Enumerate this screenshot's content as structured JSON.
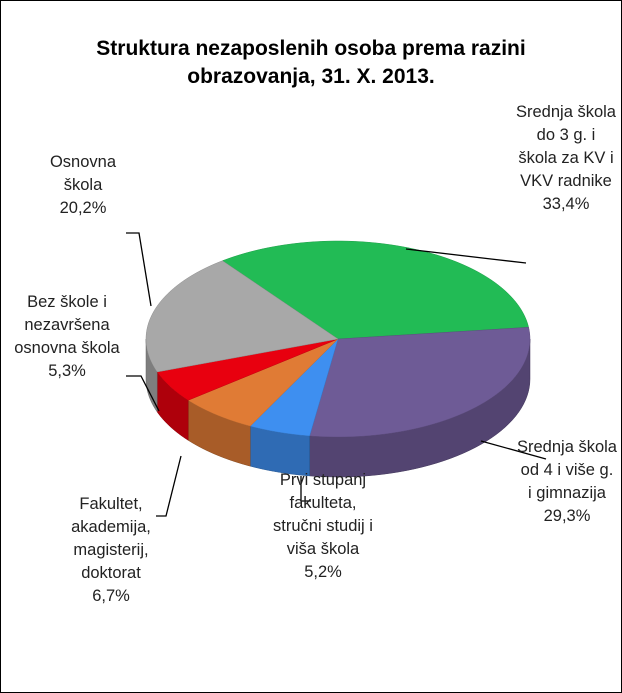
{
  "chart_data": {
    "type": "pie",
    "title": "Struktura nezaposlenih osoba prema razini obrazovanja,  31. X. 2013.",
    "categories": [
      "Srednja škola do 3 g. i škola za KV i VKV radnike",
      "Srednja škola od 4 i više g. i gimnazija",
      "Prvi stupanj fakulteta, stručni studij i viša škola",
      "Fakultet, akademija, magisterij, doktorat",
      "Bez škole i nezavršena osnovna škola",
      "Osnovna škola"
    ],
    "values": [
      33.4,
      29.3,
      5.2,
      6.7,
      5.3,
      20.2
    ],
    "value_labels": [
      "33,4%",
      "29,3%",
      "5,2%",
      "6,7%",
      "5,3%",
      "20,2%"
    ],
    "colors": [
      "#22bb55",
      "#6e5b96",
      "#3e8ff0",
      "#e07b35",
      "#e8000f",
      "#a8a8a8"
    ]
  }
}
